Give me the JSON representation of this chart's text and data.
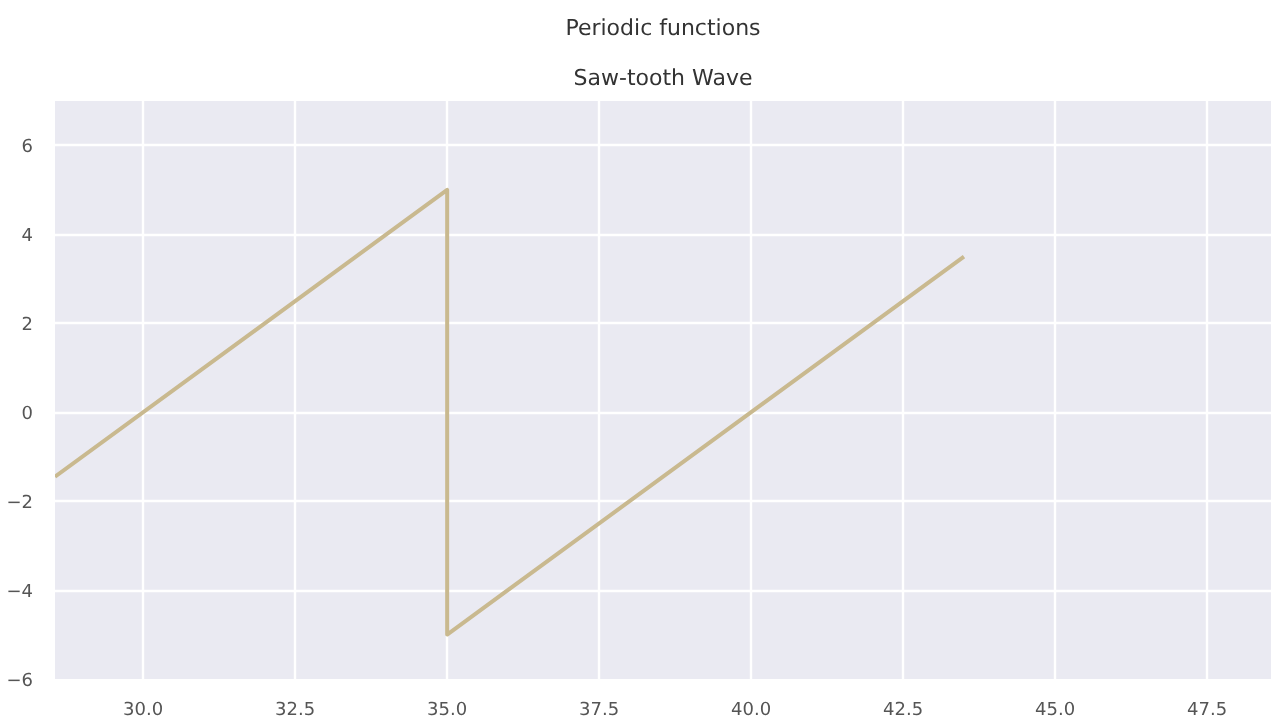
{
  "chart_data": {
    "type": "line",
    "title": "Periodic functions",
    "subtitle": "Saw-tooth Wave",
    "x": [
      28.55,
      35,
      35,
      43.5
    ],
    "series": [
      {
        "color": "#c9b98f",
        "values": [
          -1.45,
          5,
          -5,
          3.5
        ]
      }
    ],
    "xlim": [
      28.55,
      48.55
    ],
    "xticks": [
      {
        "value": 30,
        "label": "30.0"
      },
      {
        "value": 32.5,
        "label": "32.5"
      },
      {
        "value": 35,
        "label": "35.0"
      },
      {
        "value": 37.5,
        "label": "37.5"
      },
      {
        "value": 40,
        "label": "40.0"
      },
      {
        "value": 42.5,
        "label": "42.5"
      },
      {
        "value": 45,
        "label": "45.0"
      },
      {
        "value": 47.5,
        "label": "47.5"
      }
    ],
    "ylim": [
      -6,
      7
    ],
    "yticks": [
      -6,
      -4,
      -2,
      0,
      2,
      4,
      6
    ],
    "grid": true
  }
}
